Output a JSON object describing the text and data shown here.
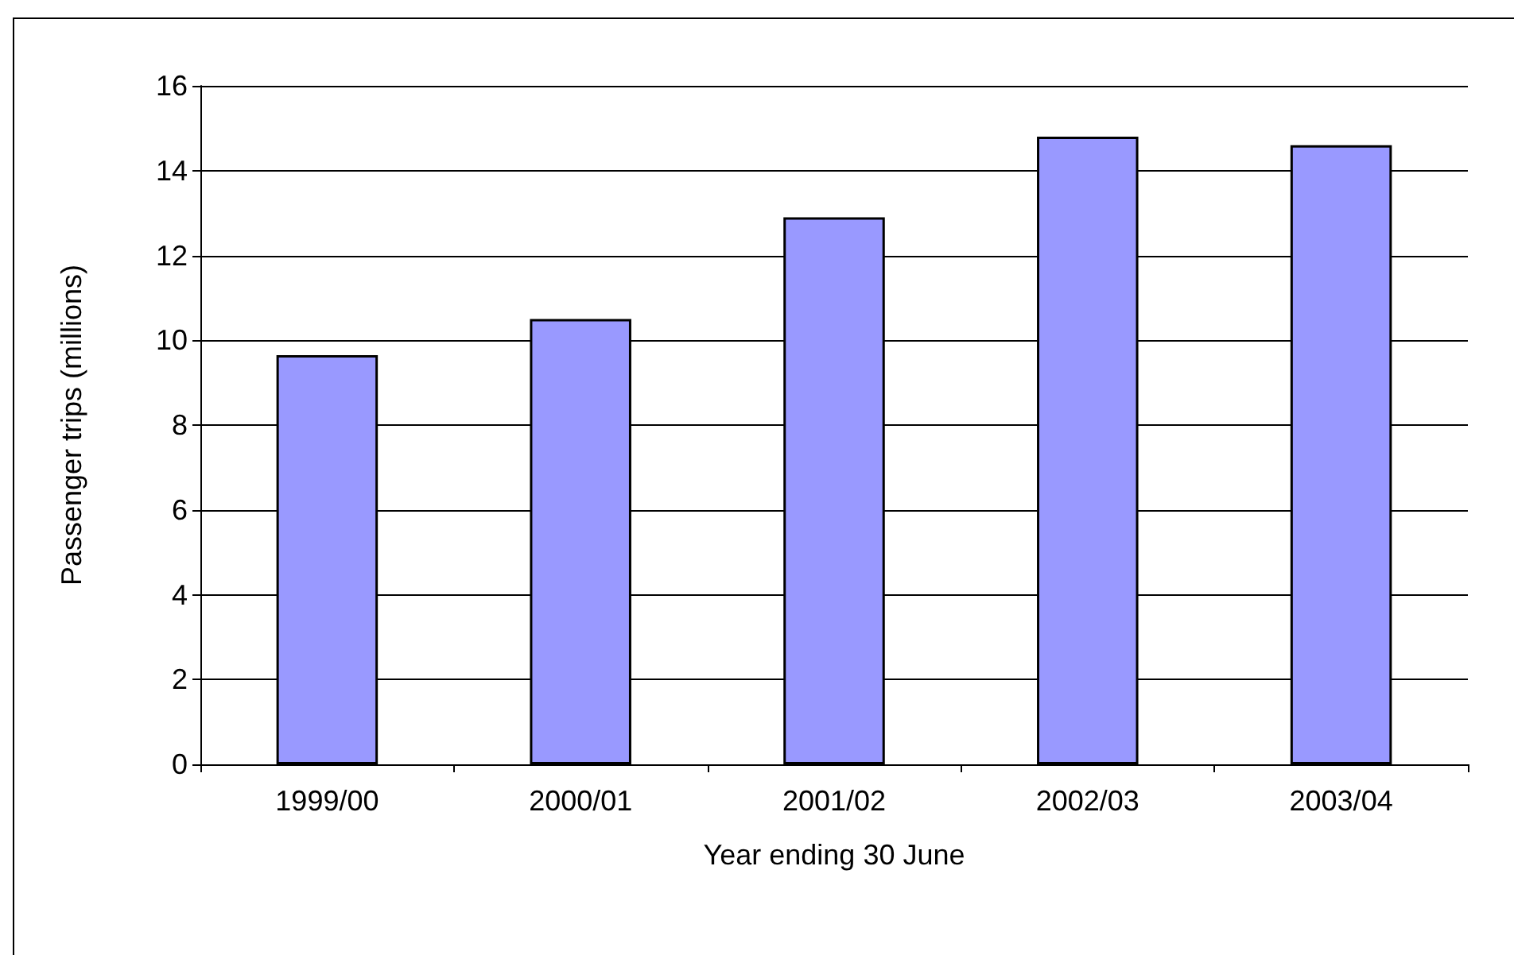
{
  "chart_data": {
    "type": "bar",
    "xlabel": "Year ending 30 June",
    "ylabel": "Passenger trips (millions)",
    "categories": [
      "1999/00",
      "2000/01",
      "2001/02",
      "2002/03",
      "2003/04"
    ],
    "values": [
      9.65,
      10.5,
      12.9,
      14.8,
      14.6
    ],
    "color": "#9999ff",
    "ylim": [
      0,
      16
    ],
    "yticks": [
      0,
      2,
      4,
      6,
      8,
      10,
      12,
      14,
      16
    ],
    "grid": "y"
  }
}
